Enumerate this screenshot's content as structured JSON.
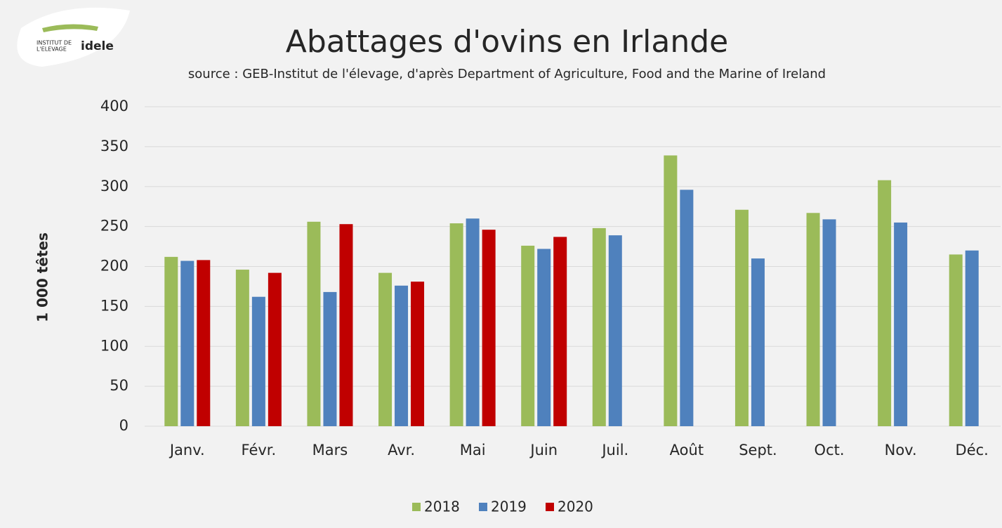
{
  "logo": {
    "line1": "INSTITUT DE",
    "line2": "L'ELEVAGE",
    "brand": "idele"
  },
  "chart_data": {
    "type": "bar",
    "title": "Abattages d'ovins en Irlande",
    "subtitle": "source : GEB-Institut de l'élevage, d'après Department of Agriculture, Food and the Marine of Ireland",
    "y_label": "1 000 têtes",
    "categories": [
      "Janv.",
      "Févr.",
      "Mars",
      "Avr.",
      "Mai",
      "Juin",
      "Juil.",
      "Août",
      "Sept.",
      "Oct.",
      "Nov.",
      "Déc."
    ],
    "series": [
      {
        "name": "2018",
        "color": "#9bbb59",
        "values": [
          212,
          196,
          256,
          192,
          254,
          226,
          248,
          339,
          271,
          267,
          308,
          215
        ]
      },
      {
        "name": "2019",
        "color": "#4f81bd",
        "values": [
          207,
          162,
          168,
          176,
          260,
          222,
          239,
          296,
          210,
          259,
          255,
          220
        ]
      },
      {
        "name": "2020",
        "color": "#c00000",
        "values": [
          208,
          192,
          253,
          181,
          246,
          237,
          null,
          null,
          null,
          null,
          null,
          null
        ]
      }
    ],
    "ylim": [
      0,
      400
    ],
    "yticks": [
      0,
      50,
      100,
      150,
      200,
      250,
      300,
      350,
      400
    ],
    "grid": true,
    "legend": "bottom"
  }
}
